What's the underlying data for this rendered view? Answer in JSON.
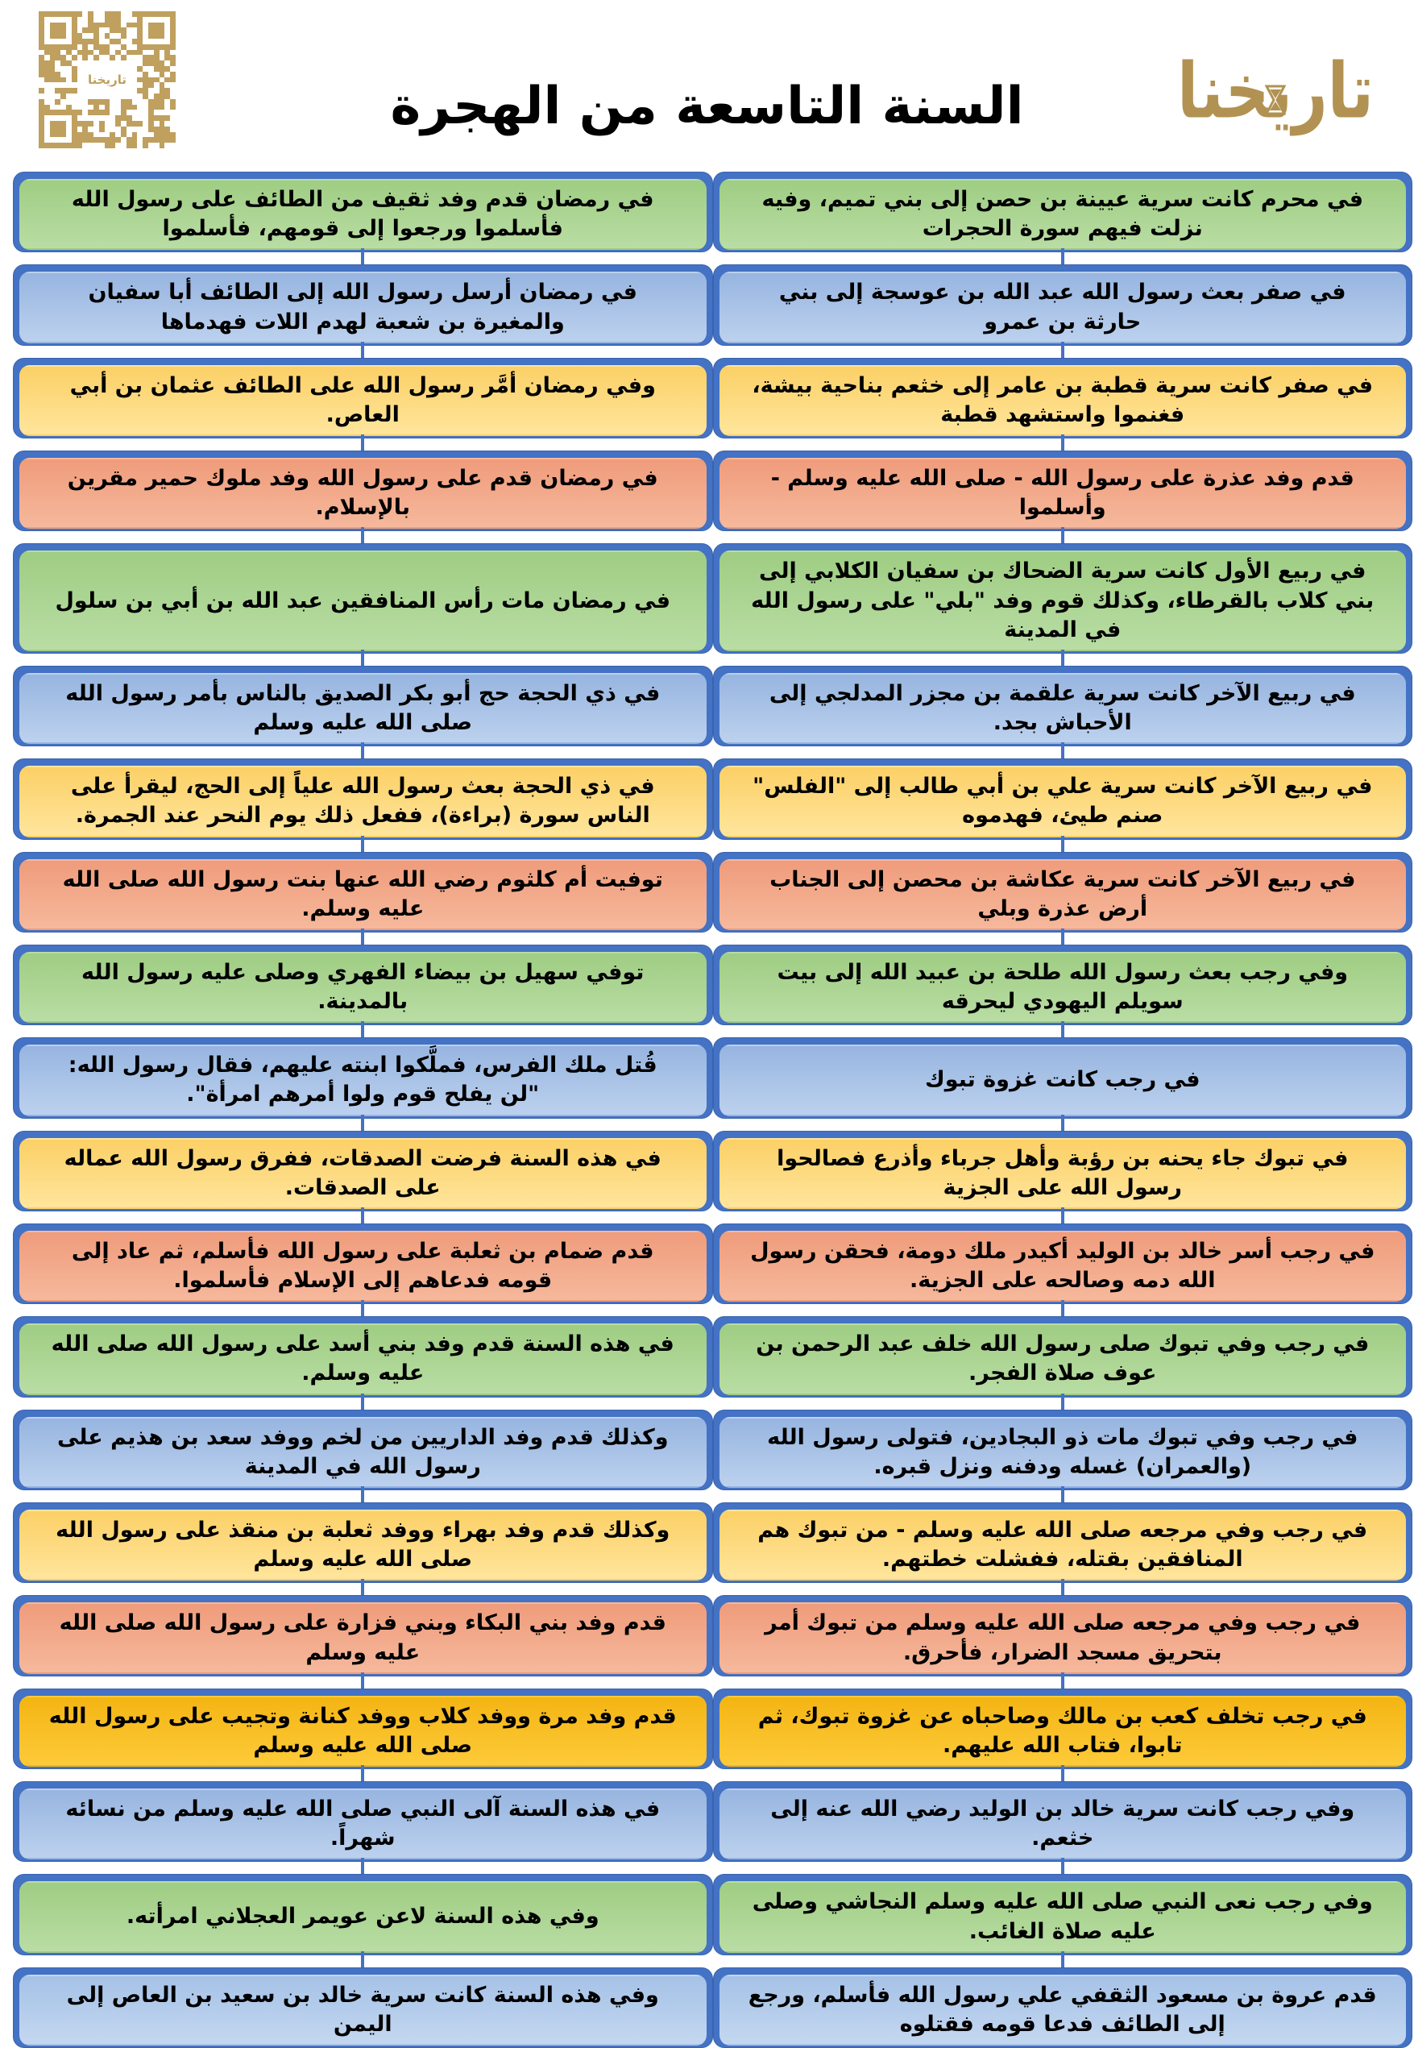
{
  "header": {
    "title": "السنة التاسعة من الهجرة",
    "logo_text": "تاريخنا",
    "qr_center_text": "تاريخنا"
  },
  "colors": {
    "backing_blue": "#4472c4",
    "connector_blue": "#4472c4",
    "qr_gold": "#bfa05e",
    "logo_gold": "#b29252",
    "green": "#a9d18e",
    "blue": "#9dc3e6",
    "orange": "#ffd966",
    "red": "#f1a183",
    "gold": "#f7bc1c",
    "sky": "#b4cdec"
  },
  "columns": {
    "right": [
      {
        "color": "green",
        "text": "في محرم كانت سرية عيينة بن حصن إلى بني تميم، وفيه نزلت فيهم سورة الحجرات"
      },
      {
        "color": "blue",
        "text": "في صفر بعث رسول الله عبد الله بن عوسجة إلى بني حارثة بن عمرو"
      },
      {
        "color": "orange",
        "text": "في صفر كانت سرية قطبة بن عامر إلى خثعم بناحية بيشة، فغنموا واستشهد قطبة"
      },
      {
        "color": "red",
        "text": "قدم وفد عذرة على رسول الله - صلى الله عليه وسلم - وأسلموا"
      },
      {
        "color": "green",
        "text": "في ربيع الأول كانت سرية الضحاك بن سفيان الكلابي إلى بني كلاب بالقرطاء، وكذلك قوم وفد \"بلي\" على رسول الله في المدينة"
      },
      {
        "color": "blue",
        "text": "في ربيع الآخر كانت سرية علقمة بن مجزر المدلجي  إلى الأحباش بجد."
      },
      {
        "color": "orange",
        "text": "في ربيع الآخر كانت سرية علي بن أبي طالب إلى \"الفلس\" صنم طيئ، فهدموه"
      },
      {
        "color": "red",
        "text": "في ربيع الآخر كانت سرية عكاشة بن محصن إلى الجناب أرض عذرة وبلي"
      },
      {
        "color": "green",
        "text": "وفي رجب بعث رسول الله طلحة بن عبيد الله إلى بيت سويلم اليهودي ليحرقه"
      },
      {
        "color": "blue",
        "text": "في رجب كانت غزوة تبوك"
      },
      {
        "color": "orange",
        "text": "في تبوك جاء يحنه بن رؤبة وأهل جرباء وأذرع فصالحوا رسول الله على الجزية"
      },
      {
        "color": "red",
        "text": "في رجب أسر خالد بن الوليد أكيدر ملك دومة، فحقن رسول الله دمه وصالحه على الجزية."
      },
      {
        "color": "green",
        "text": "في رجب وفي تبوك صلى رسول الله خلف عبد الرحمن بن عوف صلاة الفجر."
      },
      {
        "color": "blue",
        "text": "في رجب وفي تبوك مات ذو البجادين، فتولى رسول الله (والعمران) غسله ودفنه ونزل قبره."
      },
      {
        "color": "orange",
        "text": "في رجب وفي مرجعه  صلى الله عليه وسلم - من تبوك هم المنافقين بقتله، ففشلت خطتهم."
      },
      {
        "color": "red",
        "text": "في رجب وفي مرجعه صلى الله عليه وسلم من تبوك أمر بتحريق مسجد الضرار، فأحرق."
      },
      {
        "color": "gold",
        "text": "في رجب تخلف كعب بن مالك وصاحباه عن غزوة تبوك، ثم تابوا، فتاب الله عليهم."
      },
      {
        "color": "blue",
        "text": "وفي رجب كانت سرية خالد بن الوليد رضي الله عنه إلى خثعم."
      },
      {
        "color": "green",
        "text": "وفي رجب نعى النبي صلى الله عليه وسلم النجاشي وصلى عليه صلاة الغائب."
      },
      {
        "color": "sky",
        "text": "قدم عروة بن مسعود الثقفي علي رسول الله فأسلم، ورجع إلى الطائف فدعا قومه فقتلوه"
      }
    ],
    "left": [
      {
        "color": "green",
        "text": "في رمضان قدم وفد ثقيف من الطائف على رسول الله فأسلموا ورجعوا إلى قومهم، فأسلموا"
      },
      {
        "color": "blue",
        "text": "في رمضان أرسل رسول الله  إلى الطائف أبا سفيان والمغيرة بن شعبة لهدم اللات فهدماها"
      },
      {
        "color": "orange",
        "text": "وفي رمضان أمَّر رسول الله على الطائف عثمان بن أبي العاص."
      },
      {
        "color": "red",
        "text": "في رمضان قدم على رسول الله وفد ملوك حمير مقرين بالإسلام."
      },
      {
        "color": "green",
        "text": "في رمضان مات رأس المنافقين عبد الله بن أبي بن سلول"
      },
      {
        "color": "blue",
        "text": "في ذي الحجة حج أبو بكر الصديق بالناس بأمر رسول الله صلى الله عليه وسلم"
      },
      {
        "color": "orange",
        "text": "في ذي الحجة بعث رسول الله علياً إلى الحج، ليقرأ على الناس سورة (براءة)، ففعل ذلك يوم النحر عند الجمرة."
      },
      {
        "color": "red",
        "text": "توفيت أم كلثوم رضي الله عنها بنت رسول الله صلى الله عليه وسلم."
      },
      {
        "color": "green",
        "text": "توفي سهيل بن بيضاء الفهري وصلى عليه رسول الله بالمدينة."
      },
      {
        "color": "blue",
        "text": "قُتل ملك الفرس، فملَّكوا ابنته عليهم، فقال رسول الله: \"لن يفلح قوم ولوا أمرهم امرأة\"."
      },
      {
        "color": "orange",
        "text": "في هذه السنة فرضت الصدقات، ففرق رسول الله عماله على الصدقات."
      },
      {
        "color": "red",
        "text": "قدم ضمام بن ثعلبة على رسول الله فأسلم، ثم عاد إلى قومه فدعاهم إلى الإسلام فأسلموا."
      },
      {
        "color": "green",
        "text": "في هذه السنة قدم وفد بني أسد على رسول الله صلى الله عليه وسلم."
      },
      {
        "color": "blue",
        "text": "وكذلك قدم وفد الداريين من لخم ووفد سعد بن هذيم على رسول الله في المدينة"
      },
      {
        "color": "orange",
        "text": "وكذلك قدم وفد بهراء ووفد ثعلبة بن منقذ على رسول الله صلى الله عليه وسلم"
      },
      {
        "color": "red",
        "text": "قدم وفد بني البكاء وبني فزارة على رسول الله صلى الله عليه وسلم"
      },
      {
        "color": "gold",
        "text": "قدم وفد مرة ووفد كلاب ووفد كنانة وتجيب على رسول الله صلى الله عليه وسلم"
      },
      {
        "color": "blue",
        "text": "في هذه السنة آلى النبي صلى الله عليه وسلم من نسائه شهراً."
      },
      {
        "color": "green",
        "text": "وفي هذه السنة لاعن عويمر العجلاني امرأته."
      },
      {
        "color": "sky",
        "text": "وفي هذه السنة كانت سرية خالد بن سعيد بن العاص إلى اليمن"
      }
    ]
  }
}
